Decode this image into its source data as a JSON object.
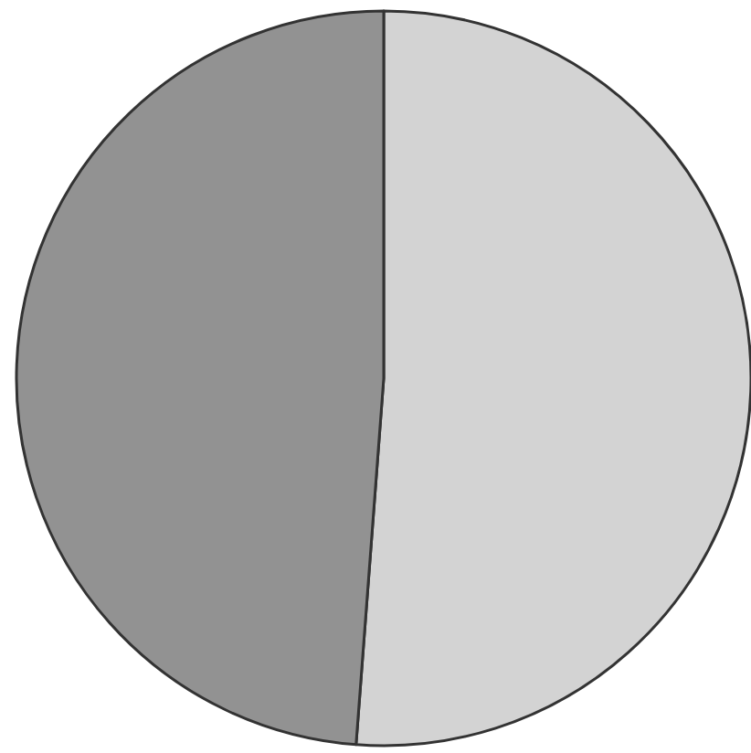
{
  "chart_data": {
    "type": "pie",
    "categories": [
      null,
      null
    ],
    "values": [
      51.2,
      48.8
    ],
    "colors": [
      "#d3d3d3",
      "#929292"
    ]
  }
}
